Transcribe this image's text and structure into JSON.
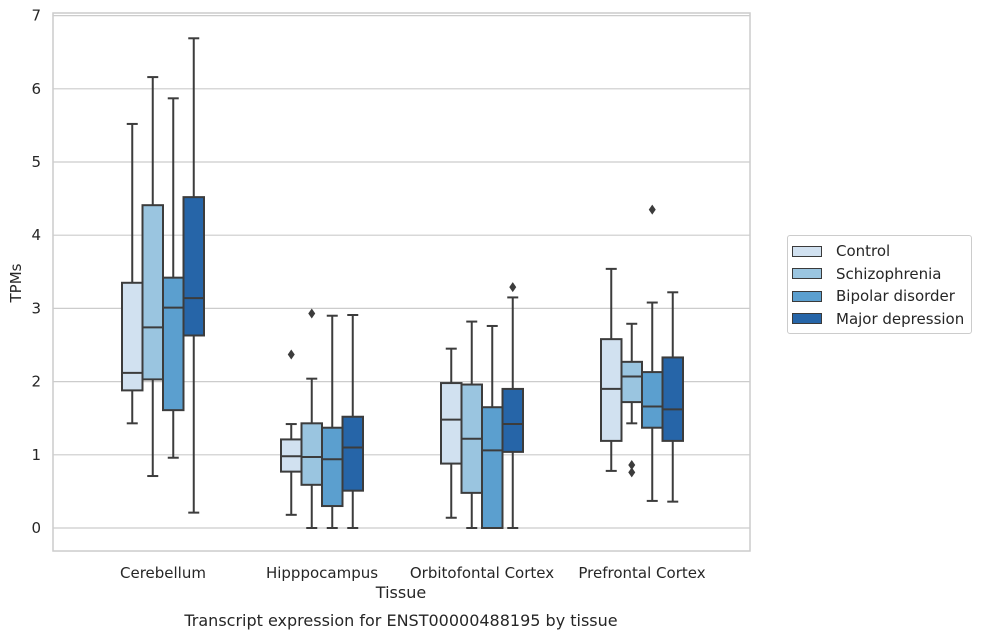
{
  "chart_data": {
    "type": "box",
    "title": "",
    "caption": "Transcript expression for ENST00000488195 by tissue",
    "xlabel": "Tissue",
    "ylabel": "TPMs",
    "ylim": [
      -0.3,
      7.05
    ],
    "yticks": [
      0,
      1,
      2,
      3,
      4,
      5,
      6,
      7
    ],
    "grid": "horizontal",
    "legend_position": "right",
    "categories": [
      "Cerebellum",
      "Hipppocampus",
      "Orbitofontal Cortex",
      "Prefrontal Cortex"
    ],
    "series": [
      {
        "name": "Control",
        "color": "#d1e1f0",
        "boxes": [
          {
            "whislo": 1.43,
            "q1": 1.88,
            "med": 2.12,
            "q3": 3.35,
            "whishi": 5.52,
            "fliers": []
          },
          {
            "whislo": 0.18,
            "q1": 0.77,
            "med": 0.98,
            "q3": 1.21,
            "whishi": 1.42,
            "fliers": [
              2.37
            ]
          },
          {
            "whislo": 0.14,
            "q1": 0.88,
            "med": 1.48,
            "q3": 1.98,
            "whishi": 2.45,
            "fliers": []
          },
          {
            "whislo": 0.78,
            "q1": 1.19,
            "med": 1.9,
            "q3": 2.58,
            "whishi": 3.54,
            "fliers": []
          }
        ]
      },
      {
        "name": "Schizophrenia",
        "color": "#9ac5e0",
        "boxes": [
          {
            "whislo": 0.71,
            "q1": 2.03,
            "med": 2.74,
            "q3": 4.41,
            "whishi": 6.16,
            "fliers": []
          },
          {
            "whislo": 0.0,
            "q1": 0.59,
            "med": 0.97,
            "q3": 1.43,
            "whishi": 2.04,
            "fliers": [
              2.93
            ]
          },
          {
            "whislo": 0.0,
            "q1": 0.48,
            "med": 1.22,
            "q3": 1.96,
            "whishi": 2.82,
            "fliers": []
          },
          {
            "whislo": 1.43,
            "q1": 1.72,
            "med": 2.07,
            "q3": 2.27,
            "whishi": 2.79,
            "fliers": [
              0.76,
              0.86
            ]
          }
        ]
      },
      {
        "name": "Bipolar disorder",
        "color": "#5b9fcf",
        "boxes": [
          {
            "whislo": 0.96,
            "q1": 1.61,
            "med": 3.01,
            "q3": 3.42,
            "whishi": 5.87,
            "fliers": []
          },
          {
            "whislo": 0.0,
            "q1": 0.3,
            "med": 0.94,
            "q3": 1.37,
            "whishi": 2.9,
            "fliers": []
          },
          {
            "whislo": 0.0,
            "q1": 0.0,
            "med": 1.06,
            "q3": 1.65,
            "whishi": 2.76,
            "fliers": []
          },
          {
            "whislo": 0.37,
            "q1": 1.37,
            "med": 1.66,
            "q3": 2.13,
            "whishi": 3.08,
            "fliers": [
              4.35
            ]
          }
        ]
      },
      {
        "name": "Major depression",
        "color": "#2665a8",
        "boxes": [
          {
            "whislo": 0.21,
            "q1": 2.63,
            "med": 3.14,
            "q3": 4.52,
            "whishi": 6.69,
            "fliers": []
          },
          {
            "whislo": 0.0,
            "q1": 0.51,
            "med": 1.1,
            "q3": 1.52,
            "whishi": 2.91,
            "fliers": []
          },
          {
            "whislo": 0.0,
            "q1": 1.04,
            "med": 1.42,
            "q3": 1.9,
            "whishi": 3.15,
            "fliers": [
              3.29
            ]
          },
          {
            "whislo": 0.36,
            "q1": 1.19,
            "med": 1.62,
            "q3": 2.33,
            "whishi": 3.22,
            "fliers": []
          }
        ]
      }
    ]
  }
}
